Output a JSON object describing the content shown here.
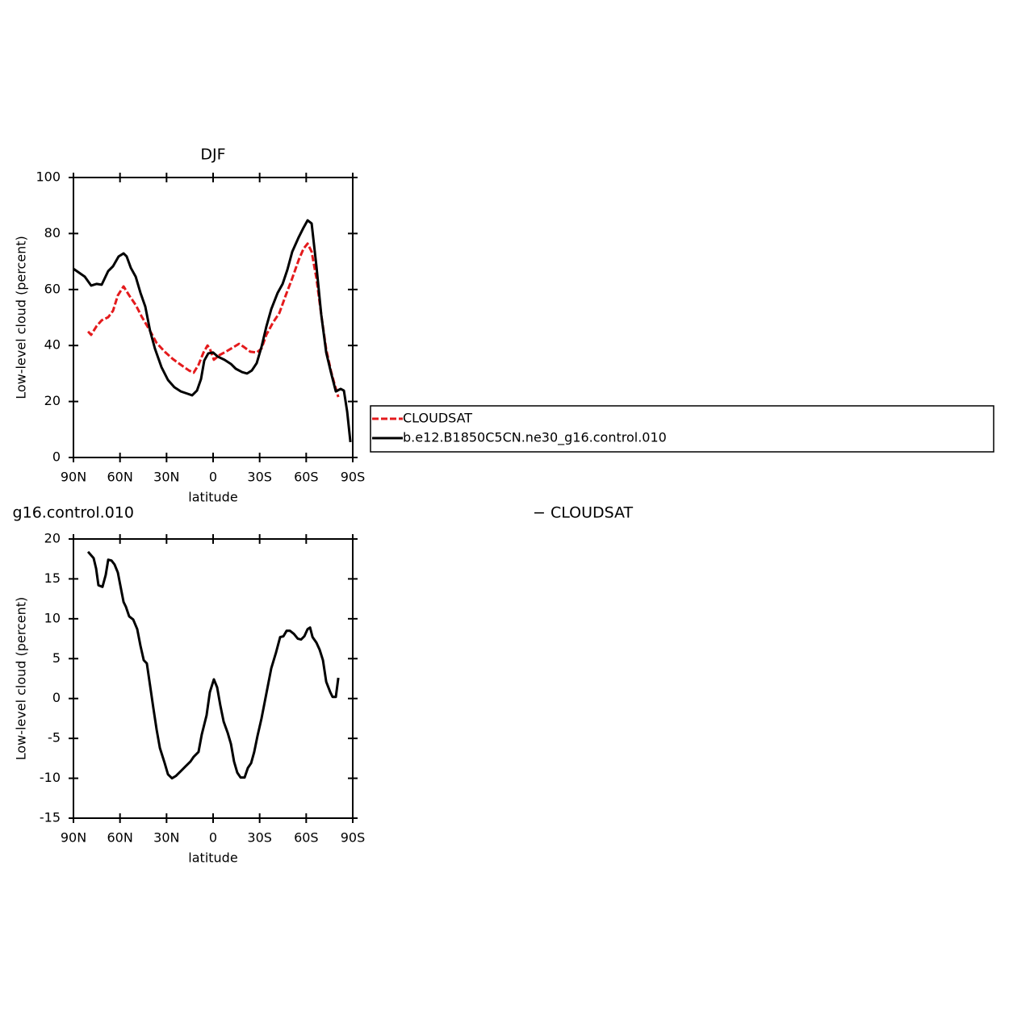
{
  "chart_data": [
    {
      "type": "line",
      "title": "DJF",
      "xlabel": "latitude",
      "ylabel": "Low-level cloud (percent)",
      "xlim": [
        90,
        -90
      ],
      "ylim": [
        0,
        100
      ],
      "xticks": [
        {
          "value": 90,
          "label": "90N"
        },
        {
          "value": 60,
          "label": "60N"
        },
        {
          "value": 30,
          "label": "30N"
        },
        0,
        {
          "value": -30,
          "label": "30S"
        },
        {
          "value": -60,
          "label": "60S"
        },
        {
          "value": -90,
          "label": "90S"
        }
      ],
      "yticks": [
        0,
        20,
        40,
        60,
        80,
        100
      ],
      "legend": "right",
      "series": [
        {
          "name": "CLOUDSAT",
          "color": "#e41a1c",
          "dash": true,
          "x": [
            80.6,
            78.6,
            75,
            71.8,
            67.6,
            64.5,
            61.4,
            57.7,
            54.1,
            49.9,
            45.8,
            40.6,
            36.4,
            31.2,
            26,
            20.8,
            15.6,
            12.5,
            9.4,
            6.2,
            3.6,
            2.1,
            -0.5,
            -4.2,
            -8.3,
            -12.5,
            -16.7,
            -19.8,
            -23.9,
            -28.1,
            -31.2,
            -34.3,
            -38.5,
            -42.7,
            -46.8,
            -51,
            -55.2,
            -58.3,
            -60.9,
            -63.5,
            -66.6,
            -69.7,
            -72.9,
            -76,
            -78.1,
            -80.7
          ],
          "values": [
            45,
            43.8,
            47,
            49,
            50.1,
            52.4,
            57.9,
            61.1,
            57.9,
            54.5,
            50.1,
            45.2,
            40.9,
            37.8,
            35.2,
            33.1,
            31.1,
            30.3,
            33.1,
            37.5,
            40,
            38.9,
            34.9,
            36.6,
            37.8,
            39.2,
            40.6,
            39.5,
            37.8,
            37.5,
            38.9,
            43.8,
            48.1,
            51.6,
            57.9,
            64,
            70.6,
            74.6,
            76.4,
            73.5,
            64,
            51,
            38.6,
            30.8,
            26.5,
            21.6
          ]
        },
        {
          "name": "b.e12.B1850C5CN.ne30_g16.control.010",
          "color": "#000000",
          "dash": false,
          "x": [
            90,
            82.7,
            78.6,
            75,
            71.8,
            67.6,
            64.5,
            60.9,
            57.7,
            55.7,
            53,
            49.9,
            46.8,
            43.7,
            40.6,
            37.5,
            33.3,
            29.1,
            25,
            20.8,
            16.6,
            13.5,
            10.4,
            7.8,
            5.7,
            3.1,
            0,
            -3.1,
            -7.3,
            -11.5,
            -14.6,
            -18.7,
            -21.9,
            -25,
            -28.1,
            -31.2,
            -34.3,
            -37.5,
            -41.6,
            -44.8,
            -47.9,
            -51,
            -55.2,
            -58.3,
            -60.9,
            -63.5,
            -66.6,
            -69.7,
            -72.9,
            -76,
            -79.1,
            -82.2,
            -84.3,
            -86.4,
            -88.5
          ],
          "values": [
            67.4,
            64.6,
            61.4,
            62,
            61.7,
            66.6,
            68.3,
            71.8,
            72.9,
            71.8,
            67.7,
            64.6,
            58.8,
            53.9,
            45.2,
            38.9,
            32.3,
            27.7,
            25.1,
            23.6,
            22.8,
            22.2,
            23.9,
            28,
            34.6,
            37.2,
            37.5,
            36,
            34.9,
            33.4,
            31.7,
            30.5,
            30,
            31.1,
            33.7,
            39.5,
            46.7,
            53,
            58.8,
            62,
            67.1,
            73.5,
            78.7,
            82.1,
            84.7,
            83.6,
            68.3,
            51,
            37.5,
            30.3,
            23.6,
            24.5,
            23.9,
            16.4,
            5.5
          ]
        }
      ]
    },
    {
      "type": "line",
      "title_left": "g16.control.010",
      "title_right": "− CLOUDSAT",
      "xlabel": "latitude",
      "ylabel": "Low-level cloud (percent)",
      "xlim": [
        90,
        -90
      ],
      "ylim": [
        -15,
        20
      ],
      "xticks": [
        {
          "value": 90,
          "label": "90N"
        },
        {
          "value": 60,
          "label": "60N"
        },
        {
          "value": 30,
          "label": "30N"
        },
        0,
        {
          "value": -30,
          "label": "30S"
        },
        {
          "value": -60,
          "label": "60S"
        },
        {
          "value": -90,
          "label": "90S"
        }
      ],
      "yticks": [
        -15,
        -10,
        -5,
        0,
        5,
        10,
        15,
        20
      ],
      "series": [
        {
          "color": "#000000",
          "dash": false,
          "x": [
            80.6,
            77,
            75.4,
            73.9,
            71.3,
            69.2,
            67.6,
            65.5,
            63.5,
            61.4,
            59.3,
            57.7,
            56.2,
            54.1,
            51.5,
            48.9,
            46.8,
            44.7,
            42.7,
            40.6,
            38.5,
            36.4,
            34.3,
            31.2,
            29.1,
            26.5,
            23.9,
            20.8,
            17.7,
            14.6,
            12.5,
            9.4,
            7.3,
            4.2,
            2.1,
            -0.5,
            -2.6,
            -4.7,
            -6.8,
            -9.4,
            -11.5,
            -13.5,
            -15.6,
            -17.7,
            -20.3,
            -22.4,
            -24.5,
            -26.5,
            -28.6,
            -31.2,
            -34.3,
            -37.5,
            -40.6,
            -43.2,
            -45.3,
            -47.4,
            -49.5,
            -52.1,
            -54.6,
            -56.7,
            -58.8,
            -60.9,
            -62.5,
            -64.1,
            -66.6,
            -68.7,
            -70.8,
            -72.9,
            -75.5,
            -77,
            -79.1,
            -80.7
          ],
          "values": [
            18.4,
            17.6,
            16.3,
            14.2,
            14,
            15.5,
            17.4,
            17.3,
            16.8,
            15.8,
            13.7,
            12.1,
            11.5,
            10.3,
            9.9,
            8.7,
            6.6,
            4.8,
            4.4,
            1.6,
            -1.2,
            -3.9,
            -6.2,
            -8.1,
            -9.5,
            -10,
            -9.7,
            -9.1,
            -8.5,
            -7.9,
            -7.3,
            -6.7,
            -4.5,
            -2.1,
            0.8,
            2.4,
            1.4,
            -0.9,
            -2.9,
            -4.3,
            -5.7,
            -7.9,
            -9.3,
            -9.9,
            -9.9,
            -8.7,
            -8.1,
            -6.7,
            -4.7,
            -2.5,
            0.6,
            3.8,
            5.8,
            7.7,
            7.8,
            8.5,
            8.5,
            8.1,
            7.5,
            7.4,
            7.8,
            8.7,
            8.9,
            7.7,
            7,
            6.1,
            4.8,
            2.1,
            0.8,
            0.2,
            0.2,
            2.6
          ]
        }
      ]
    }
  ]
}
